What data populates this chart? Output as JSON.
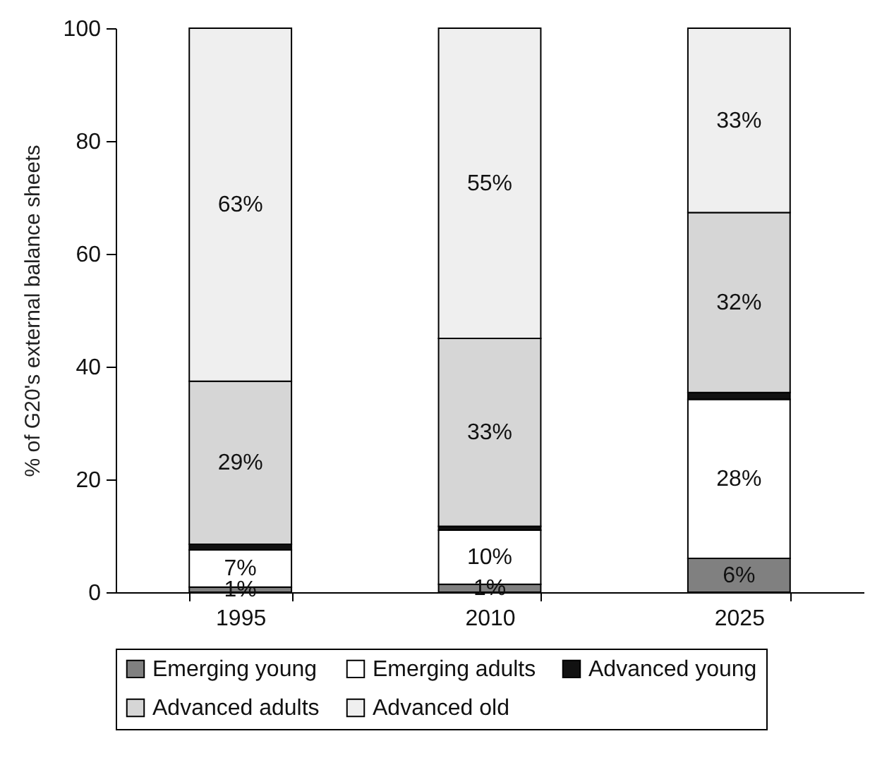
{
  "chart_data": {
    "type": "bar",
    "stacked": true,
    "categories": [
      "1995",
      "2010",
      "2025"
    ],
    "ylabel": "% of G20's external balance sheets",
    "ylim": [
      0,
      100
    ],
    "yticks": [
      0,
      20,
      40,
      60,
      80,
      100
    ],
    "legend": "bottom",
    "series": [
      {
        "name": "Emerging young",
        "color": "#808080",
        "values": [
          0.9,
          1.4,
          6.0
        ],
        "value_labels": [
          "1%",
          "1%",
          "6%"
        ]
      },
      {
        "name": "Emerging adults",
        "color": "#ffffff",
        "values": [
          6.6,
          9.6,
          28.2
        ],
        "value_labels": [
          "7%",
          "10%",
          "28%"
        ]
      },
      {
        "name": "Advanced young",
        "color": "#111111",
        "values": [
          1.0,
          0.7,
          1.2
        ],
        "value_labels": [
          null,
          null,
          null
        ]
      },
      {
        "name": "Advanced adults",
        "color": "#d6d6d6",
        "values": [
          28.9,
          33.3,
          31.9
        ],
        "value_labels": [
          "29%",
          "33%",
          "32%"
        ]
      },
      {
        "name": "Advanced old",
        "color": "#efefef",
        "values": [
          62.6,
          55.0,
          32.7
        ],
        "value_labels": [
          "63%",
          "55%",
          "33%"
        ]
      }
    ]
  }
}
